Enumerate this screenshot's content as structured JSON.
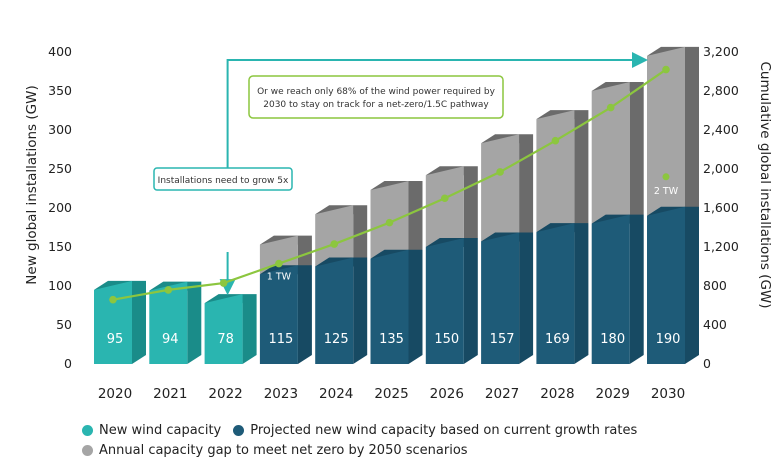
{
  "chart_data": {
    "type": "bar",
    "categories": [
      "2020",
      "2021",
      "2022",
      "2023",
      "2024",
      "2025",
      "2026",
      "2027",
      "2028",
      "2029",
      "2030"
    ],
    "series": [
      {
        "name": "New wind capacity",
        "values": [
          95,
          94,
          78,
          null,
          null,
          null,
          null,
          null,
          null,
          null,
          null
        ]
      },
      {
        "name": "Projected new wind capacity based on current growth rates",
        "values": [
          null,
          null,
          null,
          115,
          125,
          135,
          150,
          157,
          169,
          180,
          190
        ]
      },
      {
        "name": "Annual capacity gap to meet net zero by 2050 scenarios",
        "values": [
          null,
          null,
          null,
          38,
          67,
          88,
          92,
          126,
          145,
          170,
          205
        ]
      }
    ],
    "cumulative": {
      "values": [
        660,
        760,
        830,
        1030,
        1230,
        1450,
        1700,
        1970,
        2290,
        2630,
        3020
      ],
      "annotations": [
        {
          "category": "2023",
          "text": "1 TW"
        },
        {
          "category": "2030",
          "text": "2 TW",
          "value": 1920
        }
      ]
    },
    "ylabel": "New global installations (GW)",
    "ylabel_right": "Cumulative global installations (GW)",
    "ylim": [
      0,
      400
    ],
    "ylim_right": [
      0,
      3200
    ],
    "yticks": [
      "0",
      "50",
      "100",
      "150",
      "200",
      "250",
      "300",
      "350",
      "400"
    ],
    "yticks_right": [
      "0",
      "400",
      "800",
      "1,200",
      "1,600",
      "2,000",
      "2,400",
      "2,800",
      "3,200"
    ],
    "callouts": [
      {
        "text": "Installations need to grow 5x"
      },
      {
        "lines": [
          "Or we reach only 68% of the wind power required by",
          "2030 to stay on track for a net-zero/1.5C pathway"
        ]
      }
    ],
    "legend": [
      {
        "label": "New wind capacity",
        "color": "#2ab5b0"
      },
      {
        "label": "Projected new wind capacity based on current growth rates",
        "color": "#1e5b78"
      },
      {
        "label": "Annual capacity gap to meet net zero by 2050 scenarios",
        "color": "#a5a5a5"
      }
    ],
    "colors": {
      "new_front": "#2ab5b0",
      "new_side": "#1a8c89",
      "proj_front": "#1e5b78",
      "proj_side": "#174a63",
      "gap_front": "#a5a5a5",
      "gap_side": "#6b6b6b",
      "line": "#8cc63f",
      "arrow": "#2ab5b0"
    }
  }
}
